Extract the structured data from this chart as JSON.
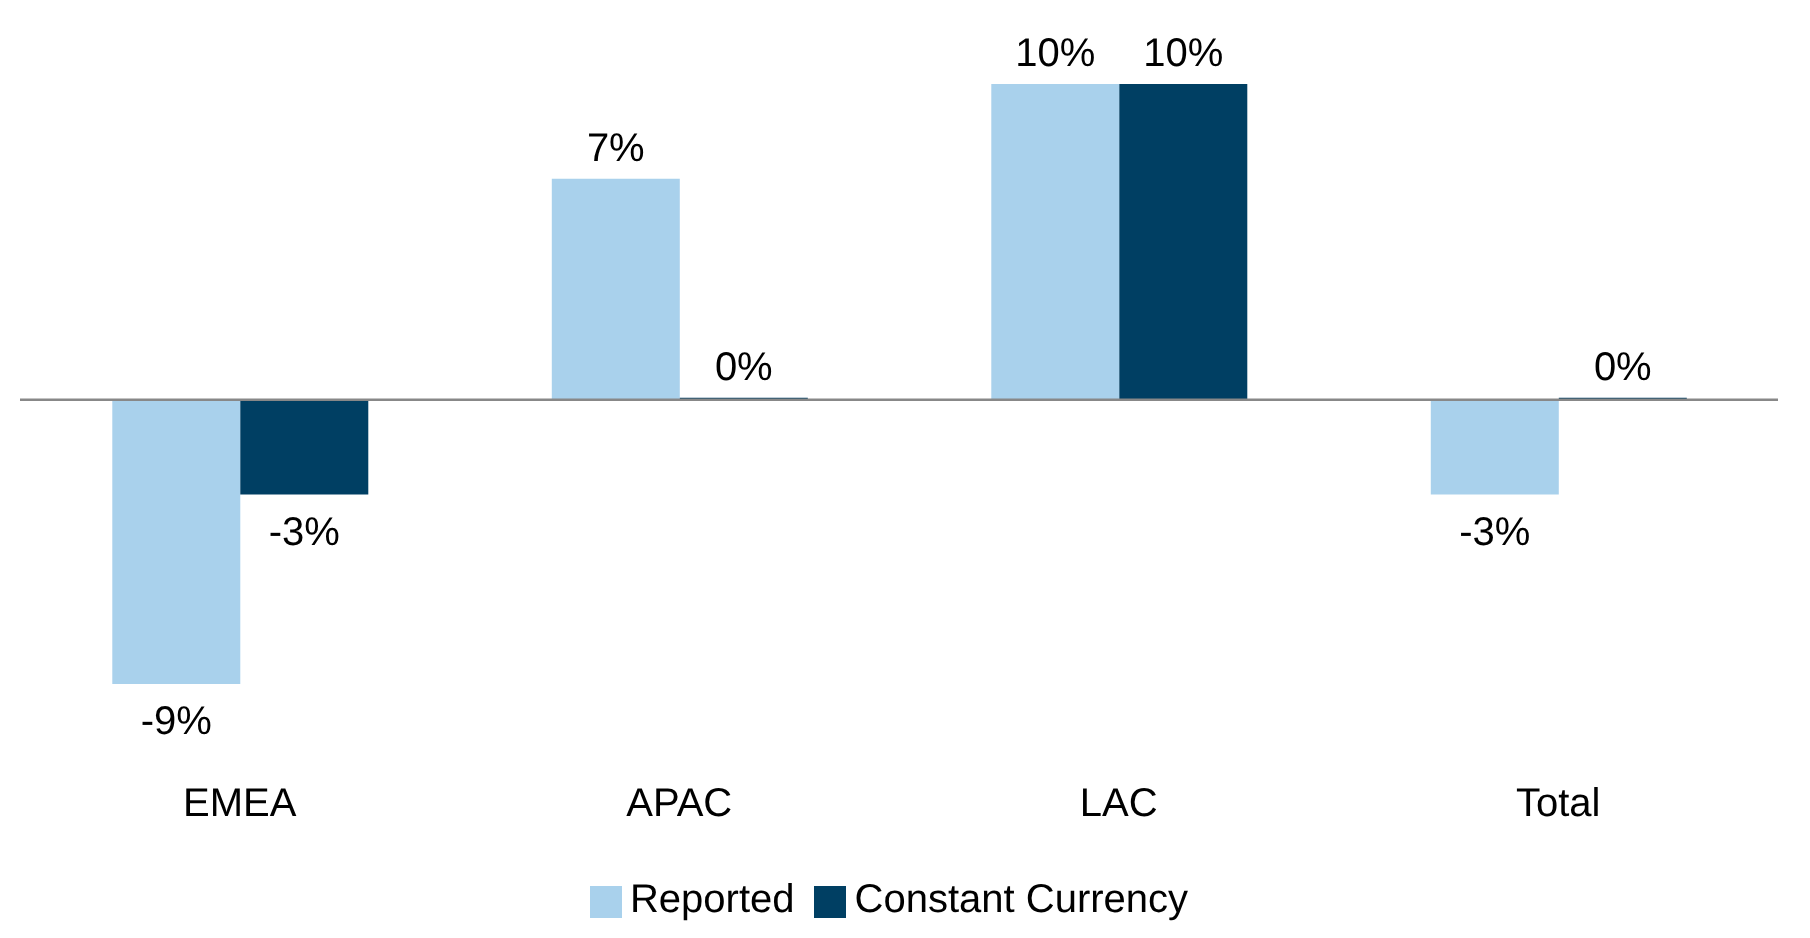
{
  "chart_data": {
    "type": "bar",
    "categories": [
      "EMEA",
      "APAC",
      "LAC",
      "Total"
    ],
    "series": [
      {
        "name": "Reported",
        "color": "#a9d1ec",
        "values": [
          -9,
          7,
          10,
          -3
        ],
        "value_labels": [
          "-9%",
          "7%",
          "10%",
          "-3%"
        ]
      },
      {
        "name": "Constant Currency",
        "color": "#003f63",
        "values": [
          -3,
          0,
          10,
          0
        ],
        "value_labels": [
          "-3%",
          "0%",
          "10%",
          "0%"
        ]
      }
    ],
    "legend": "bottom"
  }
}
